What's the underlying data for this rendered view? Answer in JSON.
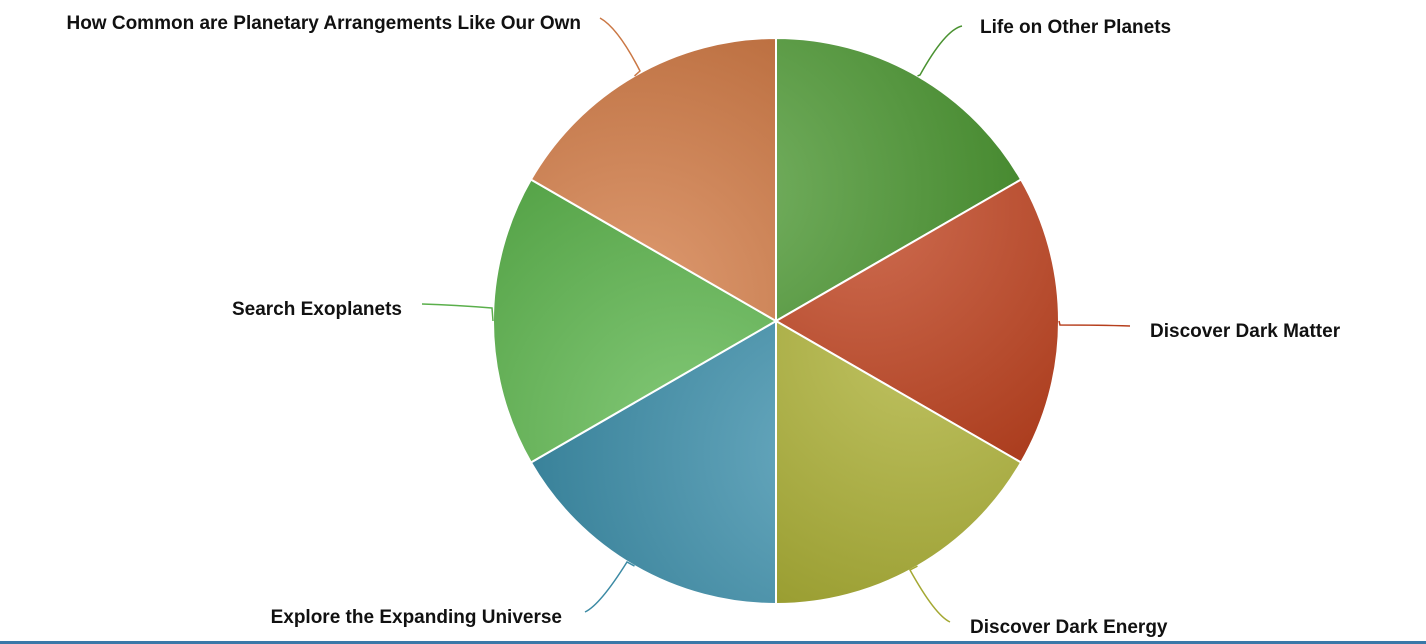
{
  "chart_data": {
    "type": "pie",
    "legend": "none",
    "slices": [
      {
        "label": "Life on Other Planets",
        "value": 1,
        "color": "#4e9a34"
      },
      {
        "label": "Discover Dark Matter",
        "value": 1,
        "color": "#c0421f"
      },
      {
        "label": "Discover Dark Energy",
        "value": 1,
        "color": "#adb135"
      },
      {
        "label": "Explore the Expanding Universe",
        "value": 1,
        "color": "#3e91ad"
      },
      {
        "label": "Search Exoplanets",
        "value": 1,
        "color": "#5fb84f"
      },
      {
        "label": "How Common are Planetary Arrangements Like Our Own",
        "value": 1,
        "color": "#d57d48"
      }
    ]
  }
}
